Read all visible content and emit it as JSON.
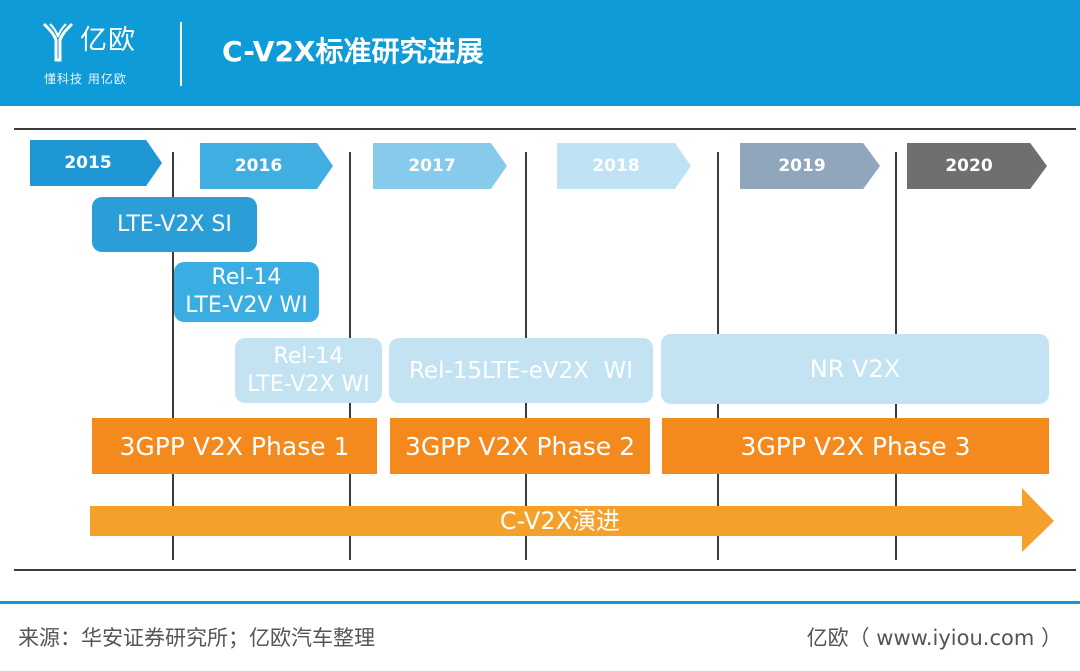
{
  "header": {
    "brand": "亿欧",
    "slogan": "懂科技 用亿欧",
    "title": "C-V2X标准研究进展"
  },
  "timeline": {
    "years": [
      {
        "label": "2015",
        "color": "#1f97d4"
      },
      {
        "label": "2016",
        "color": "#41aee2"
      },
      {
        "label": "2017",
        "color": "#86cbeb"
      },
      {
        "label": "2018",
        "color": "#bfe2f4"
      },
      {
        "label": "2019",
        "color": "#8fa6bd"
      },
      {
        "label": "2020",
        "color": "#6f6f6f"
      }
    ],
    "items": [
      {
        "line1": "LTE-V2X SI",
        "line2": ""
      },
      {
        "line1": "Rel-14",
        "line2": "LTE-V2V WI"
      },
      {
        "line1": "Rel-14",
        "line2": "LTE-V2X WI"
      },
      {
        "line1": "Rel-15LTE-eV2X  WI",
        "line2": ""
      },
      {
        "line1": "NR V2X",
        "line2": ""
      }
    ],
    "phases": [
      "3GPP V2X Phase 1",
      "3GPP V2X Phase 2",
      "3GPP V2X Phase 3"
    ],
    "evolution": "C-V2X演进"
  },
  "footer": {
    "source": "来源：华安证券研究所；亿欧汽车整理",
    "site": "亿欧（ www.iyiou.com ）"
  }
}
